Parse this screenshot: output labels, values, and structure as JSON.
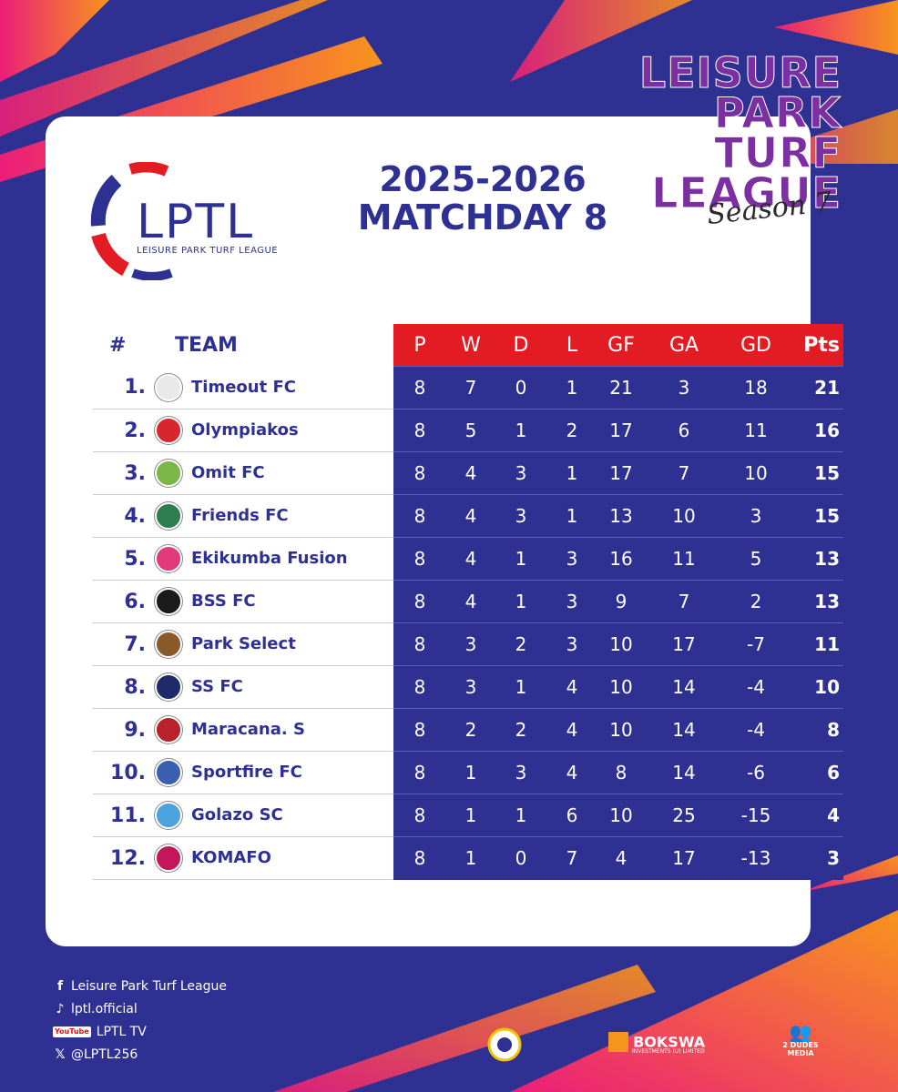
{
  "brand": {
    "title_lines": [
      "LEISURE",
      "PARK",
      "TURF",
      "LEAGUE"
    ],
    "season": "Season 7"
  },
  "logo": {
    "text": "LPTL",
    "subtitle": "LEISURE PARK TURF LEAGUE"
  },
  "heading": {
    "line1": "2025-2026",
    "line2": "MATCHDAY 8"
  },
  "table": {
    "headers": {
      "pos": "#",
      "team": "TEAM",
      "cols": [
        "P",
        "W",
        "D",
        "L",
        "GF",
        "GA",
        "GD",
        "Pts"
      ]
    },
    "rows": [
      {
        "pos": "1.",
        "team": "Timeout FC",
        "P": "8",
        "W": "7",
        "D": "0",
        "L": "1",
        "GF": "21",
        "GA": "3",
        "GD": "18",
        "Pts": "21",
        "color": "#e9e9e9"
      },
      {
        "pos": "2.",
        "team": "Olympiakos",
        "P": "8",
        "W": "5",
        "D": "1",
        "L": "2",
        "GF": "17",
        "GA": "6",
        "GD": "11",
        "Pts": "16",
        "color": "#d9262e"
      },
      {
        "pos": "3.",
        "team": "Omit FC",
        "P": "8",
        "W": "4",
        "D": "3",
        "L": "1",
        "GF": "17",
        "GA": "7",
        "GD": "10",
        "Pts": "15",
        "color": "#7ab648"
      },
      {
        "pos": "4.",
        "team": "Friends FC",
        "P": "8",
        "W": "4",
        "D": "3",
        "L": "1",
        "GF": "13",
        "GA": "10",
        "GD": "3",
        "Pts": "15",
        "color": "#2e7d4f"
      },
      {
        "pos": "5.",
        "team": "Ekikumba Fusion",
        "P": "8",
        "W": "4",
        "D": "1",
        "L": "3",
        "GF": "16",
        "GA": "11",
        "GD": "5",
        "Pts": "13",
        "color": "#e03a7a"
      },
      {
        "pos": "6.",
        "team": "BSS FC",
        "P": "8",
        "W": "4",
        "D": "1",
        "L": "3",
        "GF": "9",
        "GA": "7",
        "GD": "2",
        "Pts": "13",
        "color": "#1a1a1a"
      },
      {
        "pos": "7.",
        "team": "Park Select",
        "P": "8",
        "W": "3",
        "D": "2",
        "L": "3",
        "GF": "10",
        "GA": "17",
        "GD": "-7",
        "Pts": "11",
        "color": "#8b5a2b"
      },
      {
        "pos": "8.",
        "team": "SS FC",
        "P": "8",
        "W": "3",
        "D": "1",
        "L": "4",
        "GF": "10",
        "GA": "14",
        "GD": "-4",
        "Pts": "10",
        "color": "#1f2a6b"
      },
      {
        "pos": "9.",
        "team": "Maracana. S",
        "P": "8",
        "W": "2",
        "D": "2",
        "L": "4",
        "GF": "10",
        "GA": "14",
        "GD": "-4",
        "Pts": "8",
        "color": "#b8222a"
      },
      {
        "pos": "10.",
        "team": "Sportfire FC",
        "P": "8",
        "W": "1",
        "D": "3",
        "L": "4",
        "GF": "8",
        "GA": "14",
        "GD": "-6",
        "Pts": "6",
        "color": "#3a5fb0"
      },
      {
        "pos": "11.",
        "team": "Golazo SC",
        "P": "8",
        "W": "1",
        "D": "1",
        "L": "6",
        "GF": "10",
        "GA": "25",
        "GD": "-15",
        "Pts": "4",
        "color": "#4aa3df"
      },
      {
        "pos": "12.",
        "team": "KOMAFO",
        "P": "8",
        "W": "1",
        "D": "0",
        "L": "7",
        "GF": "4",
        "GA": "17",
        "GD": "-13",
        "Pts": "3",
        "color": "#c2185b"
      }
    ]
  },
  "footer": {
    "facebook": "Leisure Park Turf League",
    "tiktok": "lptl.official",
    "youtube_badge": "YouTube",
    "youtube": "LPTL TV",
    "twitter": "@LPTL256"
  },
  "sponsors": {
    "bokswa": "BOKSWA",
    "bokswa_sub": "INVESTMENTS (U) LIMITED",
    "dudes": "2 DUDES MEDIA"
  },
  "colors": {
    "navy": "#2e3192",
    "red": "#e31b23",
    "purple": "#7b2fa0",
    "orange": "#f7941d",
    "pink": "#ec1e79"
  }
}
